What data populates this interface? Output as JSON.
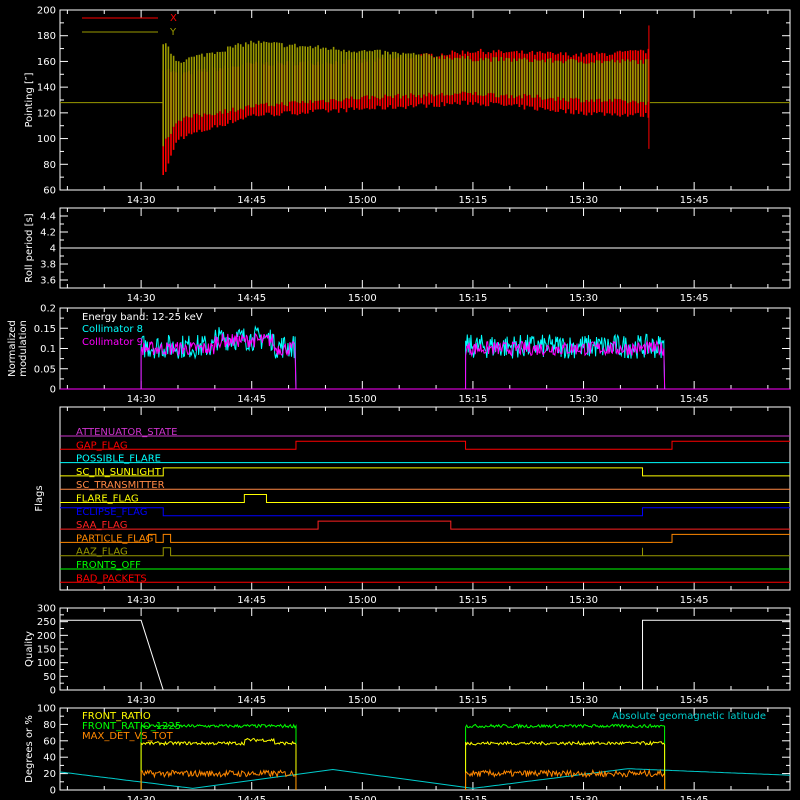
{
  "chart_data": [
    {
      "id": "pointing",
      "type": "line",
      "ylabel": "Pointing [″]",
      "ylim": [
        60,
        200
      ],
      "yticks": [
        60,
        80,
        100,
        120,
        140,
        160,
        180,
        200
      ],
      "xticks": [
        "14:30",
        "14:45",
        "15:00",
        "15:15",
        "15:30",
        "15:45"
      ],
      "legend_position": "top-left",
      "series": [
        {
          "name": "X",
          "color": "#ff0000",
          "x": [
            "14:33",
            "14:35",
            "14:45",
            "15:00",
            "15:15",
            "15:30",
            "15:39"
          ],
          "upper": [
            155,
            150,
            158,
            160,
            168,
            165,
            168
          ],
          "lower": [
            70,
            100,
            118,
            123,
            128,
            120,
            118
          ]
        },
        {
          "name": "Y",
          "color": "#9a9a00",
          "x": [
            "14:33",
            "14:35",
            "14:45",
            "15:00",
            "15:15",
            "15:30",
            "15:39"
          ],
          "upper": [
            175,
            160,
            175,
            168,
            162,
            160,
            160
          ],
          "lower": [
            95,
            115,
            125,
            132,
            135,
            130,
            128
          ],
          "baseline": 128
        }
      ]
    },
    {
      "id": "roll-period",
      "type": "line",
      "ylabel": "Roll period [s]",
      "ylim": [
        3.5,
        4.5
      ],
      "yticks": [
        3.6,
        3.8,
        4.0,
        4.2,
        4.4
      ],
      "xticks": [
        "14:30",
        "14:45",
        "15:00",
        "15:15",
        "15:30",
        "15:45"
      ],
      "series": [
        {
          "name": "",
          "color": "#ffffff",
          "value": 4.0
        }
      ]
    },
    {
      "id": "modulation",
      "type": "line",
      "ylabel": "Normalized modulation",
      "ylim": [
        0,
        0.2
      ],
      "yticks": [
        0.0,
        0.05,
        0.1,
        0.15,
        0.2
      ],
      "xticks": [
        "14:30",
        "14:45",
        "15:00",
        "15:15",
        "15:30",
        "15:45"
      ],
      "legend_title": "Energy band: 12-25 keV",
      "segments": [
        [
          "14:30",
          "14:51"
        ],
        [
          "15:14",
          "15:41"
        ]
      ],
      "series": [
        {
          "name": "Collimator 8",
          "color": "#00ffff",
          "mean": 0.105
        },
        {
          "name": "Collimator 9",
          "color": "#ff00ff",
          "mean": 0.1
        }
      ]
    },
    {
      "id": "flags",
      "type": "line",
      "ylabel": "Flags",
      "xticks": [
        "14:30",
        "14:45",
        "15:00",
        "15:15",
        "15:30",
        "15:45"
      ],
      "flags": [
        {
          "name": "ATTENUATOR_STATE",
          "color": "#cc33cc",
          "transitions": [],
          "initial": 0
        },
        {
          "name": "GAP_FLAG",
          "color": "#ff0000",
          "transitions": [
            "14:51",
            "15:14",
            "15:42"
          ],
          "initial": 0
        },
        {
          "name": "POSSIBLE_FLARE",
          "color": "#00ffff",
          "transitions": [],
          "initial": 0
        },
        {
          "name": "SC_IN_SUNLIGHT",
          "color": "#ffff00",
          "transitions": [
            "14:33",
            "15:38"
          ],
          "initial": 0
        },
        {
          "name": "SC_TRANSMITTER",
          "color": "#ff8844",
          "transitions": [],
          "initial": 0
        },
        {
          "name": "FLARE_FLAG",
          "color": "#ffff00",
          "transitions": [
            "14:44",
            "14:47"
          ],
          "initial": 0
        },
        {
          "name": "ECLIPSE_FLAG",
          "color": "#0000ff",
          "transitions": [
            "14:33",
            "15:38"
          ],
          "initial": 1
        },
        {
          "name": "SAA_FLAG",
          "color": "#ff2222",
          "transitions": [
            "14:54",
            "15:12"
          ],
          "initial": 0
        },
        {
          "name": "PARTICLE_FLAG",
          "color": "#ff8800",
          "transitions": [
            "14:31",
            "14:32",
            "14:33",
            "14:34",
            "15:42"
          ],
          "initial": 0
        },
        {
          "name": "AAZ_FLAG",
          "color": "#999900",
          "transitions": [
            "14:33",
            "14:34",
            "15:38",
            "15:38"
          ],
          "initial": 0
        },
        {
          "name": "FRONTS_OFF",
          "color": "#00ff00",
          "transitions": [],
          "initial": 0
        },
        {
          "name": "BAD_PACKETS",
          "color": "#ff0000",
          "transitions": [],
          "initial": 0
        }
      ]
    },
    {
      "id": "quality",
      "type": "line",
      "ylabel": "Quality",
      "ylim": [
        0,
        300
      ],
      "yticks": [
        0,
        50,
        100,
        150,
        200,
        250,
        300
      ],
      "xticks": [
        "14:30",
        "14:45",
        "15:00",
        "15:15",
        "15:30",
        "15:45"
      ],
      "series": [
        {
          "name": "",
          "color": "#ffffff",
          "x": [
            "14:19",
            "14:30",
            "14:33",
            "15:38",
            "15:38",
            "15:58"
          ],
          "y": [
            255,
            255,
            0,
            0,
            255,
            255
          ]
        }
      ]
    },
    {
      "id": "ratios",
      "type": "line",
      "ylabel": "Degrees or %",
      "ylim": [
        0,
        100
      ],
      "yticks": [
        0,
        20,
        40,
        60,
        80,
        100
      ],
      "xticks": [
        "14:30",
        "14:45",
        "15:00",
        "15:15",
        "15:30",
        "15:45"
      ],
      "segments": [
        [
          "14:30",
          "14:51"
        ],
        [
          "15:14",
          "15:41"
        ]
      ],
      "series": [
        {
          "name": "FRONT_RATIO",
          "color": "#ffff00",
          "mean": 57
        },
        {
          "name": "FRONT_RATIO_1225",
          "color": "#00ff00",
          "mean": 78
        },
        {
          "name": "MAX_DET_VS_TOT",
          "color": "#ff8800",
          "mean": 20
        },
        {
          "name": "Absolute geomagnetic latitude",
          "color": "#00cccc",
          "x": [
            "14:19",
            "14:37",
            "14:56",
            "15:15",
            "15:36",
            "15:58"
          ],
          "y": [
            22,
            2,
            25,
            2,
            26,
            18
          ]
        }
      ]
    }
  ]
}
